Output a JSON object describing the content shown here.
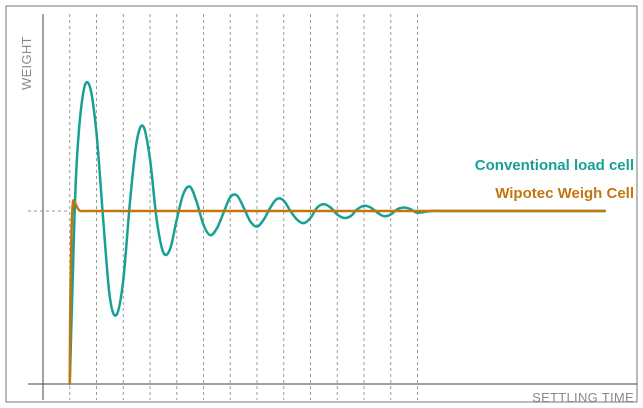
{
  "chart_data": {
    "type": "line",
    "title": "",
    "xlabel": "SETTLING TIME",
    "ylabel": "WEIGHT",
    "xlim": [
      0,
      21
    ],
    "ylim": [
      0,
      1.85
    ],
    "target_level": 1,
    "grid": {
      "x_dashed_lines": [
        1,
        2,
        3,
        4,
        5,
        6,
        7,
        8,
        9,
        10,
        11,
        12,
        13,
        14
      ],
      "y_dashed_lines": [
        1
      ]
    },
    "legend": "right",
    "series": [
      {
        "name": "Conventional load cell",
        "color": "#17a096",
        "x": [
          1.0,
          1.1,
          1.25,
          1.5,
          1.75,
          2.0,
          2.25,
          2.5,
          2.75,
          3.0,
          3.25,
          3.5,
          3.75,
          4.0,
          4.25,
          4.5,
          4.75,
          5.0,
          5.25,
          5.5,
          5.75,
          6.0,
          6.25,
          6.5,
          6.75,
          7.0,
          7.25,
          7.5,
          7.75,
          8.0,
          8.25,
          8.5,
          8.75,
          9.0,
          9.25,
          9.5,
          9.75,
          10.0,
          10.25,
          10.5,
          10.75,
          11.0,
          11.25,
          11.5,
          11.75,
          12.0,
          12.25,
          12.5,
          12.75,
          13.0,
          13.25,
          13.5,
          13.75,
          14.0,
          14.5,
          15.0,
          16.0,
          18.0,
          21.0
        ],
        "y": [
          0.0,
          0.55,
          1.25,
          1.68,
          1.72,
          1.45,
          0.95,
          0.5,
          0.4,
          0.6,
          1.05,
          1.4,
          1.49,
          1.3,
          0.95,
          0.76,
          0.78,
          0.95,
          1.1,
          1.14,
          1.05,
          0.92,
          0.86,
          0.9,
          0.99,
          1.08,
          1.09,
          1.02,
          0.94,
          0.91,
          0.95,
          1.02,
          1.07,
          1.06,
          1.0,
          0.95,
          0.93,
          0.96,
          1.02,
          1.04,
          1.02,
          0.98,
          0.96,
          0.97,
          1.01,
          1.03,
          1.02,
          0.99,
          0.97,
          0.98,
          1.01,
          1.02,
          1.01,
          0.99,
          1.0,
          1.0,
          1.0,
          1.0,
          1.0
        ]
      },
      {
        "name": "Wipotec Weigh Cell",
        "color": "#c2760f",
        "x": [
          1.0,
          1.02,
          1.07,
          1.12,
          1.18,
          1.25,
          1.32,
          1.4,
          1.5,
          2.0,
          4.0,
          8.0,
          14.0,
          21.0
        ],
        "y": [
          0.0,
          0.45,
          0.9,
          1.05,
          1.05,
          1.03,
          1.01,
          1.0,
          1.0,
          1.0,
          1.0,
          1.0,
          1.0,
          1.0
        ]
      }
    ]
  },
  "colors": {
    "frame": "#777777",
    "axis": "#444444",
    "grid": "#9a9a9a",
    "label": "#8a8a8a"
  }
}
